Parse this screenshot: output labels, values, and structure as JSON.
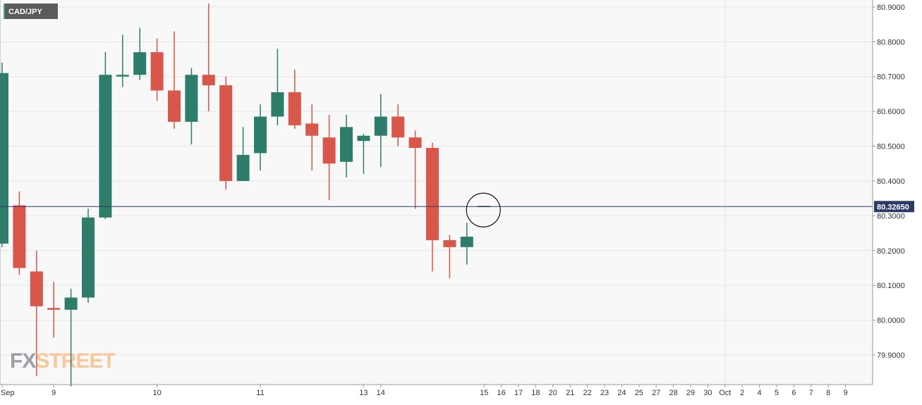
{
  "symbol": "CAD/JPY",
  "watermark": {
    "left": "FX",
    "right": "STREET"
  },
  "last_price": "80.32650",
  "colors": {
    "up": "#2e7d6a",
    "down": "#d9574a",
    "badge": "#2b3a67",
    "grid": "#e6e6e6",
    "axis_text": "#333333",
    "symbol_badge": "#5b5b5b",
    "watermark_left": "#9aa0a6",
    "watermark_right": "#f6c89b"
  },
  "chart_data": {
    "type": "candlestick",
    "title": "CAD/JPY",
    "y_axis_position": "right",
    "ylim": [
      79.815,
      80.92
    ],
    "yticks": [
      "80.9000",
      "80.8000",
      "80.7000",
      "80.6000",
      "80.5000",
      "80.4000",
      "80.3000",
      "80.2000",
      "80.1000",
      "80.0000",
      "79.9000"
    ],
    "current_price": 80.3265,
    "x_labels": [
      {
        "slot": 0.0,
        "label": "Sep"
      },
      {
        "slot": 3.0,
        "label": "9"
      },
      {
        "slot": 9.0,
        "label": "10"
      },
      {
        "slot": 15.0,
        "label": "11"
      },
      {
        "slot": 21.0,
        "label": "13"
      },
      {
        "slot": 22.0,
        "label": "14"
      },
      {
        "slot": 28.0,
        "label": "15"
      },
      {
        "slot": 29.0,
        "label": "16"
      },
      {
        "slot": 30.0,
        "label": "17"
      },
      {
        "slot": 31.0,
        "label": "18"
      },
      {
        "slot": 32.0,
        "label": "20"
      },
      {
        "slot": 33.0,
        "label": "21"
      },
      {
        "slot": 34.0,
        "label": "22"
      },
      {
        "slot": 35.0,
        "label": "23"
      },
      {
        "slot": 36.0,
        "label": "24"
      },
      {
        "slot": 37.0,
        "label": "25"
      },
      {
        "slot": 38.0,
        "label": "27"
      },
      {
        "slot": 39.0,
        "label": "28"
      },
      {
        "slot": 40.0,
        "label": "29"
      },
      {
        "slot": 41.0,
        "label": "30"
      },
      {
        "slot": 42.0,
        "label": "Oct"
      },
      {
        "slot": 43.0,
        "label": "2"
      },
      {
        "slot": 44.0,
        "label": "4"
      },
      {
        "slot": 45.0,
        "label": "5"
      },
      {
        "slot": 46.0,
        "label": "6"
      },
      {
        "slot": 47.0,
        "label": "7"
      },
      {
        "slot": 48.0,
        "label": "8"
      },
      {
        "slot": 49.0,
        "label": "9"
      }
    ],
    "candles": [
      {
        "o": 80.22,
        "h": 80.74,
        "l": 80.21,
        "c": 80.71
      },
      {
        "o": 80.33,
        "h": 80.37,
        "l": 80.13,
        "c": 80.15
      },
      {
        "o": 80.14,
        "h": 80.2,
        "l": 79.84,
        "c": 80.04
      },
      {
        "o": 80.035,
        "h": 80.11,
        "l": 79.95,
        "c": 80.03
      },
      {
        "o": 80.03,
        "h": 80.09,
        "l": 79.81,
        "c": 80.065
      },
      {
        "o": 80.065,
        "h": 80.32,
        "l": 80.05,
        "c": 80.295
      },
      {
        "o": 80.295,
        "h": 80.77,
        "l": 80.29,
        "c": 80.705
      },
      {
        "o": 80.7,
        "h": 80.82,
        "l": 80.67,
        "c": 80.705
      },
      {
        "o": 80.705,
        "h": 80.84,
        "l": 80.69,
        "c": 80.77
      },
      {
        "o": 80.77,
        "h": 80.81,
        "l": 80.63,
        "c": 80.66
      },
      {
        "o": 80.66,
        "h": 80.83,
        "l": 80.55,
        "c": 80.57
      },
      {
        "o": 80.57,
        "h": 80.725,
        "l": 80.505,
        "c": 80.705
      },
      {
        "o": 80.705,
        "h": 80.91,
        "l": 80.6,
        "c": 80.675
      },
      {
        "o": 80.675,
        "h": 80.7,
        "l": 80.375,
        "c": 80.4
      },
      {
        "o": 80.4,
        "h": 80.555,
        "l": 80.4,
        "c": 80.475
      },
      {
        "o": 80.48,
        "h": 80.62,
        "l": 80.43,
        "c": 80.585
      },
      {
        "o": 80.585,
        "h": 80.78,
        "l": 80.56,
        "c": 80.655
      },
      {
        "o": 80.655,
        "h": 80.72,
        "l": 80.55,
        "c": 80.56
      },
      {
        "o": 80.565,
        "h": 80.62,
        "l": 80.43,
        "c": 80.53
      },
      {
        "o": 80.525,
        "h": 80.59,
        "l": 80.345,
        "c": 80.45
      },
      {
        "o": 80.455,
        "h": 80.59,
        "l": 80.41,
        "c": 80.555
      },
      {
        "o": 80.515,
        "h": 80.535,
        "l": 80.42,
        "c": 80.53
      },
      {
        "o": 80.53,
        "h": 80.65,
        "l": 80.44,
        "c": 80.585
      },
      {
        "o": 80.585,
        "h": 80.62,
        "l": 80.5,
        "c": 80.525
      },
      {
        "o": 80.525,
        "h": 80.545,
        "l": 80.32,
        "c": 80.495
      },
      {
        "o": 80.495,
        "h": 80.51,
        "l": 80.14,
        "c": 80.23
      },
      {
        "o": 80.23,
        "h": 80.245,
        "l": 80.12,
        "c": 80.21
      },
      {
        "o": 80.21,
        "h": 80.28,
        "l": 80.16,
        "c": 80.24
      },
      {
        "o": 80.3265,
        "h": 80.3265,
        "l": 80.3265,
        "c": 80.3265
      }
    ],
    "annotations": [
      {
        "type": "circle",
        "slot": 28,
        "price": 80.3265,
        "note": "current price marker"
      }
    ]
  }
}
